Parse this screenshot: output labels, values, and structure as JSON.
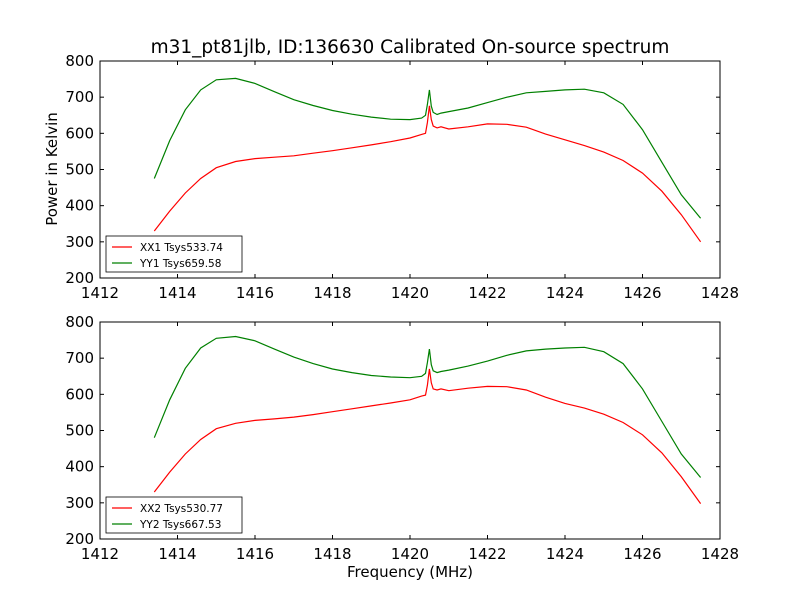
{
  "chart_data": {
    "type": "line",
    "title": "m31_pt81jlb, ID:136630 Calibrated On-source spectrum",
    "xlabel": "Frequency (MHz)",
    "colors": {
      "XX": "#ff0000",
      "YY": "#008000"
    },
    "x_ticks": [
      "1412",
      "1414",
      "1416",
      "1418",
      "1420",
      "1422",
      "1424",
      "1426",
      "1428"
    ],
    "y_ticks": [
      "200",
      "300",
      "400",
      "500",
      "600",
      "700",
      "800"
    ],
    "panels": [
      {
        "ylabel": "Power in Kelvin",
        "xlim": [
          1412,
          1428
        ],
        "ylim": [
          200,
          800
        ],
        "legend_position": "lower-left",
        "series": [
          {
            "name": "XX1 Tsys533.74",
            "color": "#ff0000",
            "x": [
              1413.4,
              1413.8,
              1414.2,
              1414.6,
              1415.0,
              1415.5,
              1416.0,
              1416.5,
              1417.0,
              1417.5,
              1418.0,
              1418.5,
              1419.0,
              1419.5,
              1420.0,
              1420.3,
              1420.4,
              1420.45,
              1420.5,
              1420.55,
              1420.6,
              1420.7,
              1420.8,
              1421.0,
              1421.5,
              1422.0,
              1422.5,
              1423.0,
              1423.5,
              1424.0,
              1424.5,
              1425.0,
              1425.5,
              1426.0,
              1426.5,
              1427.0,
              1427.5
            ],
            "y": [
              330,
              385,
              435,
              475,
              505,
              522,
              530,
              534,
              538,
              545,
              552,
              560,
              568,
              577,
              587,
              597,
              600,
              630,
              676,
              638,
              620,
              615,
              618,
              612,
              618,
              626,
              625,
              617,
              598,
              582,
              566,
              548,
              525,
              490,
              440,
              375,
              300
            ]
          },
          {
            "name": "YY1 Tsys659.58",
            "color": "#008000",
            "x": [
              1413.4,
              1413.8,
              1414.2,
              1414.6,
              1415.0,
              1415.5,
              1416.0,
              1416.5,
              1417.0,
              1417.5,
              1418.0,
              1418.5,
              1419.0,
              1419.5,
              1420.0,
              1420.3,
              1420.4,
              1420.45,
              1420.5,
              1420.55,
              1420.6,
              1420.7,
              1420.8,
              1421.0,
              1421.5,
              1422.0,
              1422.5,
              1423.0,
              1423.5,
              1424.0,
              1424.5,
              1425.0,
              1425.5,
              1426.0,
              1426.5,
              1427.0,
              1427.5
            ],
            "y": [
              475,
              580,
              665,
              720,
              748,
              752,
              738,
              715,
              693,
              677,
              663,
              653,
              645,
              639,
              638,
              642,
              650,
              680,
              720,
              675,
              658,
              652,
              656,
              660,
              670,
              685,
              700,
              712,
              716,
              720,
              722,
              712,
              680,
              610,
              520,
              430,
              365
            ]
          }
        ]
      },
      {
        "ylabel": "",
        "xlim": [
          1412,
          1428
        ],
        "ylim": [
          200,
          800
        ],
        "legend_position": "lower-left",
        "series": [
          {
            "name": "XX2 Tsys530.77",
            "color": "#ff0000",
            "x": [
              1413.4,
              1413.8,
              1414.2,
              1414.6,
              1415.0,
              1415.5,
              1416.0,
              1416.5,
              1417.0,
              1417.5,
              1418.0,
              1418.5,
              1419.0,
              1419.5,
              1420.0,
              1420.3,
              1420.4,
              1420.45,
              1420.5,
              1420.55,
              1420.6,
              1420.7,
              1420.8,
              1421.0,
              1421.5,
              1422.0,
              1422.5,
              1423.0,
              1423.5,
              1424.0,
              1424.5,
              1425.0,
              1425.5,
              1426.0,
              1426.5,
              1427.0,
              1427.5
            ],
            "y": [
              330,
              385,
              435,
              475,
              505,
              520,
              528,
              532,
              537,
              544,
              552,
              560,
              568,
              576,
              585,
              595,
              598,
              625,
              670,
              632,
              615,
              612,
              615,
              610,
              617,
              622,
              621,
              612,
              592,
              575,
              562,
              545,
              522,
              488,
              438,
              372,
              298
            ]
          },
          {
            "name": "YY2 Tsys667.53",
            "color": "#008000",
            "x": [
              1413.4,
              1413.8,
              1414.2,
              1414.6,
              1415.0,
              1415.5,
              1416.0,
              1416.5,
              1417.0,
              1417.5,
              1418.0,
              1418.5,
              1419.0,
              1419.5,
              1420.0,
              1420.3,
              1420.4,
              1420.45,
              1420.5,
              1420.55,
              1420.6,
              1420.7,
              1420.8,
              1421.0,
              1421.5,
              1422.0,
              1422.5,
              1423.0,
              1423.5,
              1424.0,
              1424.5,
              1425.0,
              1425.5,
              1426.0,
              1426.5,
              1427.0,
              1427.5
            ],
            "y": [
              480,
              585,
              672,
              728,
              755,
              760,
              748,
              725,
              703,
              685,
              670,
              660,
              652,
              648,
              646,
              650,
              658,
              688,
              725,
              682,
              665,
              660,
              663,
              667,
              678,
              692,
              708,
              720,
              725,
              728,
              730,
              718,
              685,
              615,
              525,
              435,
              370
            ]
          }
        ]
      }
    ]
  }
}
